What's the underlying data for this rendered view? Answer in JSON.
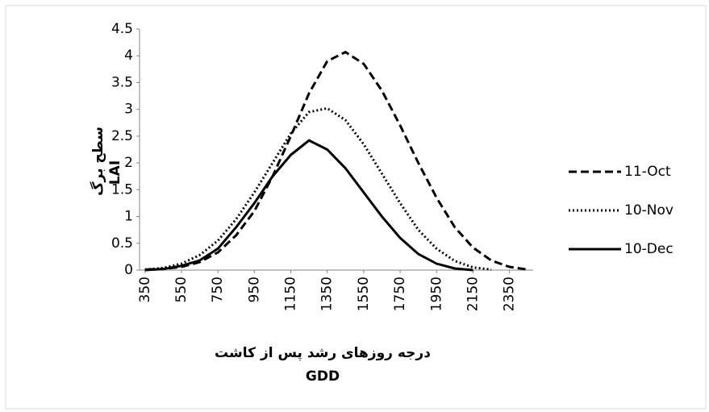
{
  "chart_data": {
    "type": "line",
    "y_label": "سطح برگ",
    "y_label_2": "LAI",
    "x_label": "درجه روزهای رشد پس از کاشت",
    "x_label_2": "GDD",
    "x": [
      350,
      450,
      550,
      650,
      750,
      850,
      950,
      1050,
      1150,
      1250,
      1350,
      1450,
      1550,
      1650,
      1750,
      1850,
      1950,
      2050,
      2150,
      2250,
      2350,
      2450
    ],
    "series": [
      {
        "name": "11-Oct",
        "color": "#000000",
        "dash": "dashed",
        "values": [
          0.01,
          0.02,
          0.06,
          0.15,
          0.33,
          0.65,
          1.1,
          1.75,
          2.5,
          3.3,
          3.9,
          4.07,
          3.85,
          3.35,
          2.7,
          2.0,
          1.35,
          0.8,
          0.42,
          0.18,
          0.06,
          0.01
        ]
      },
      {
        "name": "10-Nov",
        "color": "#000000",
        "dash": "dotted",
        "values": [
          0.01,
          0.04,
          0.12,
          0.28,
          0.55,
          0.95,
          1.45,
          2.0,
          2.55,
          2.95,
          3.02,
          2.8,
          2.35,
          1.8,
          1.25,
          0.75,
          0.4,
          0.17,
          0.05,
          0.01,
          null,
          null
        ]
      },
      {
        "name": "10-Dec",
        "color": "#000000",
        "dash": "solid",
        "values": [
          0.0,
          0.02,
          0.08,
          0.18,
          0.4,
          0.8,
          1.25,
          1.75,
          2.15,
          2.42,
          2.25,
          1.9,
          1.45,
          1.0,
          0.6,
          0.3,
          0.12,
          0.03,
          0.0,
          null,
          null,
          null
        ]
      }
    ],
    "xlim": [
      320,
      2480
    ],
    "xticks": [
      350,
      550,
      750,
      950,
      1150,
      1350,
      1550,
      1750,
      1950,
      2150,
      2350
    ],
    "ylim": [
      0,
      4.5
    ],
    "yticks": [
      0,
      0.5,
      1,
      1.5,
      2,
      2.5,
      3,
      3.5,
      4,
      4.5
    ],
    "legend": "right"
  }
}
